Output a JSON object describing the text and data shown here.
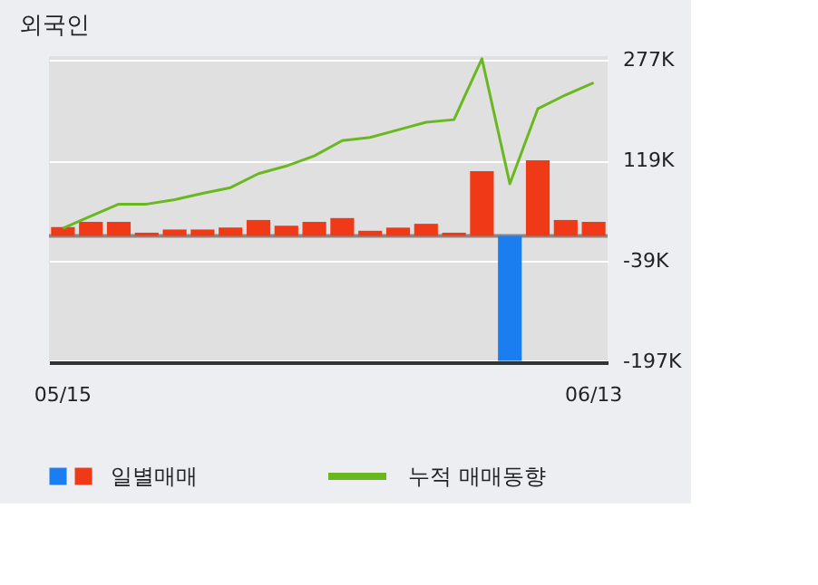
{
  "chart_data": {
    "type": "bar",
    "title": "외국인",
    "categories": [
      "05/15",
      null,
      null,
      null,
      null,
      null,
      null,
      null,
      null,
      null,
      null,
      null,
      null,
      null,
      null,
      null,
      null,
      null,
      null,
      "06/13"
    ],
    "series": [
      {
        "name": "일별매매",
        "colors": [
          "#f03a17",
          "#f03a17",
          "#f03a17",
          "#f03a17",
          "#f03a17",
          "#f03a17",
          "#f03a17",
          "#f03a17",
          "#f03a17",
          "#f03a17",
          "#f03a17",
          "#f03a17",
          "#f03a17",
          "#f03a17",
          "#f03a17",
          "#f03a17",
          "#1a7ef0",
          "#f03a17",
          "#f03a17",
          "#f03a17"
        ],
        "values": [
          14000,
          22000,
          22000,
          5000,
          10000,
          10000,
          13000,
          25000,
          16000,
          22000,
          28000,
          8000,
          13000,
          19000,
          5000,
          102000,
          -197000,
          119000,
          25000,
          22000
        ]
      },
      {
        "name": "누적 매매동향",
        "type": "line",
        "color": "#6ab820",
        "values": [
          12000,
          31000,
          50000,
          50000,
          57000,
          67000,
          76000,
          98000,
          110000,
          126000,
          150000,
          155000,
          167000,
          179000,
          183000,
          279000,
          82000,
          200000,
          222000,
          241000
        ]
      }
    ],
    "ylim": [
      -199000,
      283000
    ],
    "yticks": [
      {
        "value": 277000,
        "label": "277K"
      },
      {
        "value": 119000,
        "label": "119K"
      },
      {
        "value": -39000,
        "label": "-39K"
      },
      {
        "value": -197000,
        "label": "-197K"
      }
    ],
    "ref_lines": [
      {
        "axis": "y",
        "value": 0,
        "color": "#888888"
      }
    ],
    "grid": "y",
    "legend": "bottom"
  }
}
